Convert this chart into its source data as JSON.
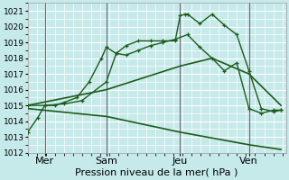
{
  "title": "Pression niveau de la mer( hPa )",
  "bg_color": "#c6e9e9",
  "grid_color": "#ffffff",
  "line_color": "#1a5c1a",
  "ylim": [
    1012,
    1021.5
  ],
  "yticks": [
    1012,
    1013,
    1014,
    1015,
    1016,
    1017,
    1018,
    1019,
    1020,
    1021
  ],
  "xlim": [
    0,
    10.5
  ],
  "day_positions": [
    0.7,
    3.2,
    6.2,
    9.0
  ],
  "day_labels": [
    "Mer",
    "Sam",
    "Jeu",
    "Ven"
  ],
  "vline_positions": [
    0.7,
    3.2,
    6.2,
    9.0
  ],
  "series": [
    {
      "x": [
        0.0,
        0.4,
        0.7,
        1.1,
        1.5,
        2.0,
        2.5,
        3.0,
        3.2,
        3.6,
        4.0,
        4.5,
        5.0,
        5.5,
        6.0,
        6.2,
        6.4,
        6.5,
        7.0,
        7.5,
        8.0,
        8.5,
        9.0,
        9.5,
        10.0,
        10.3
      ],
      "y": [
        1013.3,
        1014.2,
        1015.0,
        1015.0,
        1015.2,
        1015.5,
        1016.5,
        1018.0,
        1018.7,
        1018.3,
        1018.8,
        1019.1,
        1019.1,
        1019.1,
        1019.1,
        1020.7,
        1020.8,
        1020.8,
        1020.2,
        1020.8,
        1020.1,
        1019.5,
        1017.2,
        1014.8,
        1014.6,
        1014.7
      ],
      "marker": true,
      "lw": 1.0
    },
    {
      "x": [
        0.0,
        0.7,
        1.5,
        2.2,
        3.2,
        3.6,
        4.0,
        4.5,
        5.0,
        5.5,
        6.0,
        6.5,
        7.0,
        7.5,
        8.0,
        8.5,
        9.0,
        9.5,
        10.0,
        10.3
      ],
      "y": [
        1015.0,
        1015.0,
        1015.1,
        1015.3,
        1016.5,
        1018.3,
        1018.2,
        1018.5,
        1018.8,
        1019.0,
        1019.2,
        1019.5,
        1018.7,
        1018.0,
        1017.2,
        1017.7,
        1014.8,
        1014.5,
        1014.7,
        1014.7
      ],
      "marker": true,
      "lw": 1.0
    },
    {
      "x": [
        0.0,
        3.2,
        6.2,
        7.5,
        9.0,
        10.3
      ],
      "y": [
        1015.0,
        1016.0,
        1017.5,
        1018.0,
        1017.0,
        1015.0
      ],
      "marker": false,
      "lw": 1.2
    },
    {
      "x": [
        0.0,
        3.2,
        6.2,
        9.0,
        10.3
      ],
      "y": [
        1014.8,
        1014.3,
        1013.3,
        1012.5,
        1012.2
      ],
      "marker": false,
      "lw": 1.2
    }
  ],
  "tick_fontsize": 6.5,
  "xlabel_fontsize": 8
}
